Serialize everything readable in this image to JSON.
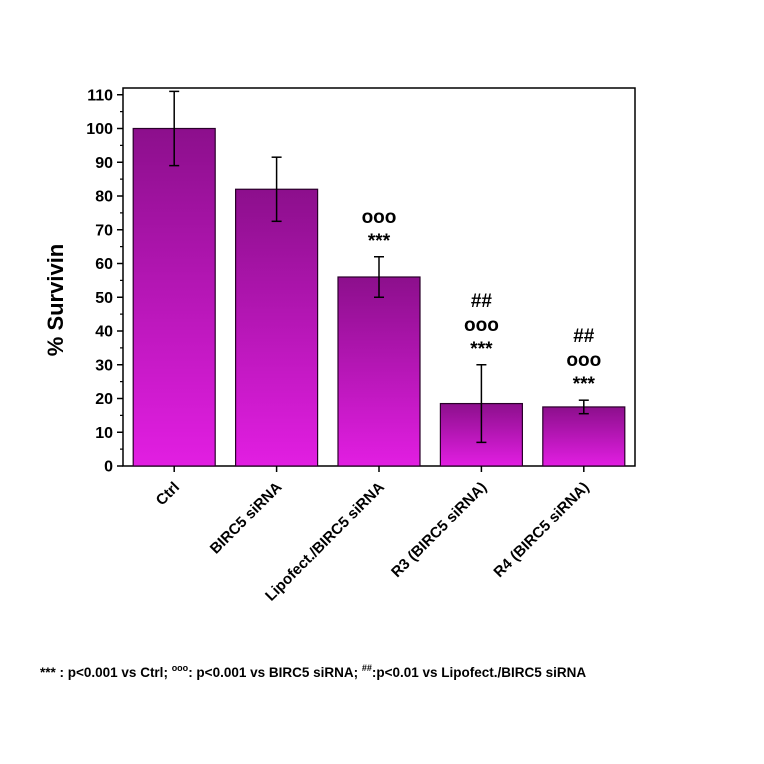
{
  "chart_data": {
    "type": "bar",
    "categories": [
      "Ctrl",
      "BIRC5 siRNA",
      "Lipofect./BIRC5 siRNA",
      "R3 (BIRC5 siRNA)",
      "R4 (BIRC5 siRNA)"
    ],
    "values": [
      100,
      82,
      56,
      18.5,
      17.5
    ],
    "error": [
      11,
      9.5,
      6,
      11.5,
      2
    ],
    "annotations": [
      [],
      [],
      [
        "ooo",
        "***"
      ],
      [
        "##",
        "ooo",
        "***"
      ],
      [
        "##",
        "ooo",
        "***"
      ]
    ],
    "ylabel": "% Survivin",
    "xlabel": "",
    "title": "",
    "ylim": [
      0,
      112
    ],
    "yticks": [
      0,
      10,
      20,
      30,
      40,
      50,
      60,
      70,
      80,
      90,
      100,
      110
    ],
    "grid": false,
    "colors": {
      "bar_top": "#8c0f8c",
      "bar_bottom": "#e21ee2",
      "bar_edge": "#2a002a"
    }
  },
  "footnote": {
    "part1": "*** : p<0.001 vs Ctrl; ",
    "sup1": "ooo",
    "part2": ": p<0.001 vs BIRC5 siRNA; ",
    "sup2": "##",
    "part3": ":p<0.01 vs Lipofect./BIRC5 siRNA"
  }
}
